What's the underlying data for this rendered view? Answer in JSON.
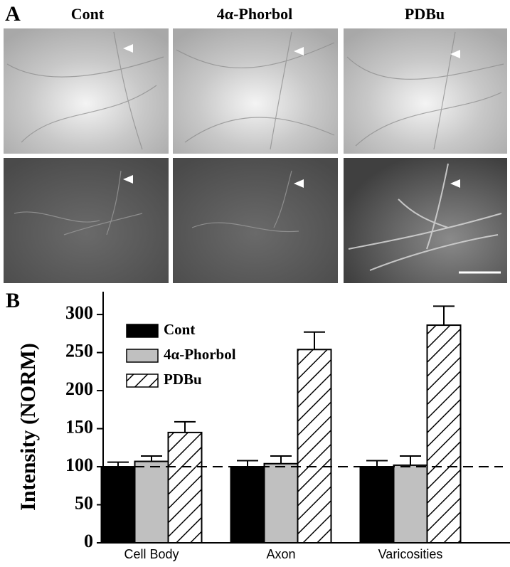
{
  "panel_labels": [
    "A",
    "B"
  ],
  "image_columns": [
    "Cont",
    "4α-Phorbol",
    "PDBu"
  ],
  "chart_data": {
    "type": "bar",
    "y_label": "Intensity (NORM)",
    "categories": [
      "Cell Body",
      "Axon",
      "Varicosities"
    ],
    "series": [
      {
        "name": "Cont",
        "color": "#000000",
        "values": [
          100,
          100,
          100
        ],
        "errors": [
          6,
          8,
          8
        ]
      },
      {
        "name": "4α-Phorbol",
        "color": "#c0c0c0",
        "values": [
          107,
          104,
          102
        ],
        "errors": [
          7,
          10,
          12
        ]
      },
      {
        "name": "PDBu",
        "color": "#ffffff",
        "pattern": "hatch",
        "values": [
          145,
          254,
          286
        ],
        "errors": [
          14,
          23,
          25
        ]
      }
    ],
    "ylim": [
      0,
      330
    ],
    "yticks": [
      0,
      50,
      100,
      150,
      200,
      250,
      300
    ],
    "reference_line": 100,
    "legend": "top-left"
  }
}
